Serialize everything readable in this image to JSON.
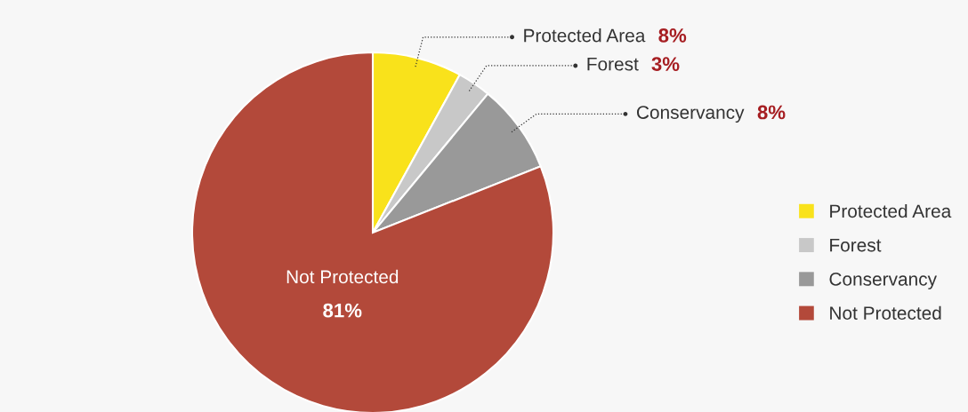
{
  "chart_data": {
    "type": "pie",
    "categories": [
      "Protected Area",
      "Forest",
      "Conservancy",
      "Not Protected"
    ],
    "values": [
      8,
      3,
      8,
      81
    ],
    "colors": [
      "#f9e21b",
      "#c8c8c8",
      "#999999",
      "#b3493a"
    ],
    "value_labels": [
      "8%",
      "3%",
      "8%",
      "81%"
    ],
    "legend": "right"
  }
}
